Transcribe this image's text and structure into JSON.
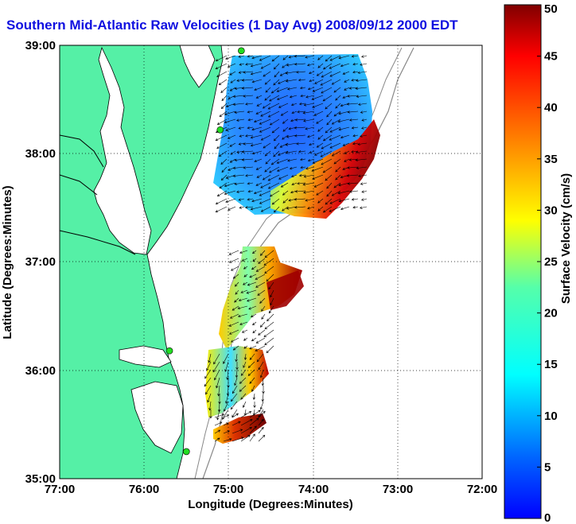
{
  "title": "Southern Mid-Atlantic Raw Velocities (1 Day Avg) 2008/09/12 2000 EDT",
  "chart_data": {
    "type": "heatmap",
    "title": "Southern Mid-Atlantic Raw Velocities (1 Day Avg) 2008/09/12 2000 EDT",
    "xlabel": "Longitude (Degrees:Minutes)",
    "ylabel": "Latitude (Degrees:Minutes)",
    "x_ticks": [
      "77:00",
      "76:00",
      "75:00",
      "74:00",
      "73:00",
      "72:00"
    ],
    "y_ticks": [
      "39:00",
      "38:00",
      "37:00",
      "36:00",
      "35:00"
    ],
    "xlim": [
      -77,
      -72
    ],
    "ylim": [
      35,
      39
    ],
    "grid": true,
    "colorbar": {
      "label": "Surface Velocity (cm/s)",
      "ticks": [
        "0",
        "5",
        "10",
        "15",
        "20",
        "25",
        "30",
        "35",
        "40",
        "45",
        "50"
      ],
      "range": [
        0,
        50
      ]
    },
    "regions": [
      {
        "lon": [
          -75.0,
          -74.0
        ],
        "lat": [
          38.4,
          38.9
        ],
        "speed": 8
      },
      {
        "lon": [
          -74.5,
          -73.3
        ],
        "lat": [
          37.6,
          38.2
        ],
        "speed": 40
      },
      {
        "lon": [
          -74.7,
          -74.3
        ],
        "lat": [
          36.5,
          36.9
        ],
        "speed": 45
      },
      {
        "lon": [
          -75.0,
          -74.5
        ],
        "lat": [
          35.3,
          35.5
        ],
        "speed": 42
      }
    ],
    "stations": [
      {
        "lon": -74.85,
        "lat": 38.95
      },
      {
        "lon": -75.1,
        "lat": 38.22
      },
      {
        "lon": -75.7,
        "lat": 36.18
      },
      {
        "lon": -75.5,
        "lat": 35.25
      }
    ]
  },
  "colors": {
    "land": "#55f0a6",
    "water": "#ffffff",
    "title": "#1010e0",
    "station": "#22dd22",
    "coast": "#000000",
    "isobath": "#888888"
  }
}
